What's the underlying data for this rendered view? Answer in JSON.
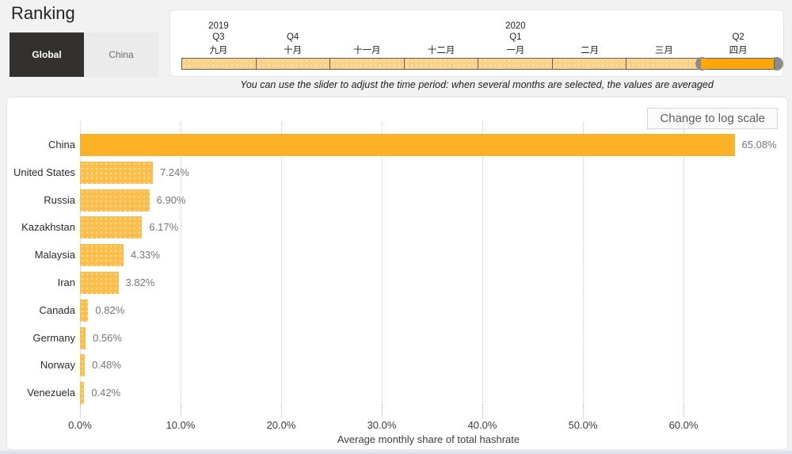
{
  "page": {
    "title": "Ranking"
  },
  "toggle": {
    "global_label": "Global",
    "china_label": "China"
  },
  "slider": {
    "months": [
      {
        "year": "2019",
        "quarter": "Q3",
        "month": "九月",
        "selected": false
      },
      {
        "year": "",
        "quarter": "Q4",
        "month": "十月",
        "selected": false
      },
      {
        "year": "",
        "quarter": "",
        "month": "十一月",
        "selected": false
      },
      {
        "year": "",
        "quarter": "",
        "month": "十二月",
        "selected": false
      },
      {
        "year": "2020",
        "quarter": "Q1",
        "month": "一月",
        "selected": false
      },
      {
        "year": "",
        "quarter": "",
        "month": "二月",
        "selected": false
      },
      {
        "year": "",
        "quarter": "",
        "month": "三月",
        "selected": false
      },
      {
        "year": "",
        "quarter": "Q2",
        "month": "四月",
        "selected": true
      }
    ],
    "instruction": "You can use the slider to adjust the time period: when several months are selected, the values are averaged"
  },
  "chart": {
    "log_scale_button": "Change to log scale"
  },
  "chart_data": {
    "type": "bar",
    "orientation": "horizontal",
    "title": "Ranking",
    "categories": [
      "China",
      "United States",
      "Russia",
      "Kazakhstan",
      "Malaysia",
      "Iran",
      "Canada",
      "Germany",
      "Norway",
      "Venezuela"
    ],
    "values": [
      65.08,
      7.24,
      6.9,
      6.17,
      4.33,
      3.82,
      0.82,
      0.56,
      0.48,
      0.42
    ],
    "value_labels": [
      "65.08%",
      "7.24%",
      "6.90%",
      "6.17%",
      "4.33%",
      "3.82%",
      "0.82%",
      "0.56%",
      "0.48%",
      "0.42%"
    ],
    "xlabel": "Average monthly share of total hashrate",
    "ylabel": "",
    "x_ticks": [
      "0.0%",
      "10.0%",
      "20.0%",
      "30.0%",
      "40.0%",
      "50.0%",
      "60.0%"
    ],
    "x_tick_values": [
      0,
      10,
      20,
      30,
      40,
      50,
      60
    ],
    "xlim": [
      0,
      70
    ],
    "grid": "dotted-vertical",
    "legend": "none"
  },
  "colors": {
    "bar": "#FCBE4B",
    "bar_highlight": "#FCB226",
    "slider_selected": "#FFA60A",
    "slider_unselected": "#FBD187",
    "toggle_active_bg": "#323130",
    "accent_handle": "#8C8C8C"
  }
}
